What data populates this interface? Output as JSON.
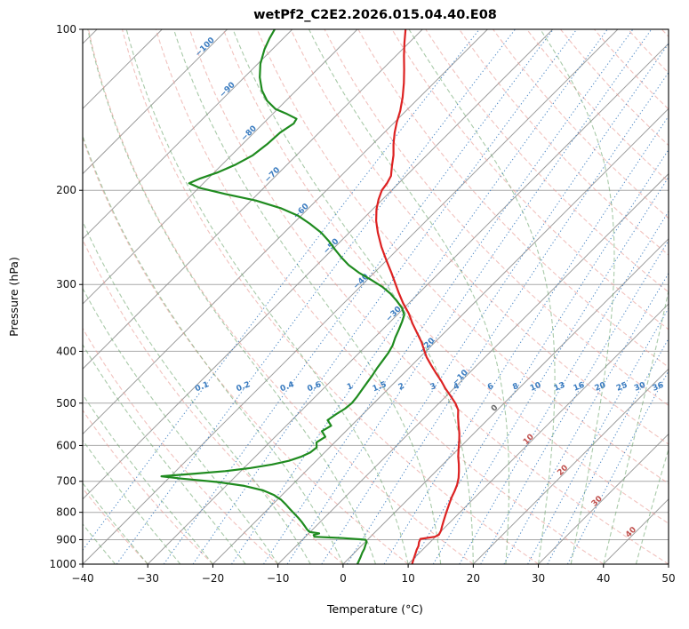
{
  "title": "wetPf2_C2E2.2026.015.04.40.E08",
  "x_axis": {
    "label": "Temperature (°C)",
    "min": -40,
    "max": 50,
    "ticks": [
      -40,
      -30,
      -20,
      -10,
      0,
      10,
      20,
      30,
      40,
      50
    ]
  },
  "y_axis": {
    "label": "Pressure (hPa)",
    "min": 100,
    "max": 1000,
    "scale": "log",
    "ticks": [
      100,
      200,
      300,
      400,
      500,
      600,
      700,
      800,
      900,
      1000
    ]
  },
  "chart_data": {
    "type": "line",
    "variant": "skew-t-log-p",
    "title": "wetPf2_C2E2.2026.015.04.40.E08",
    "xlabel": "Temperature (°C)",
    "ylabel": "Pressure (hPa)",
    "skew_degC_per_decade": 82.2,
    "pressure_gridlines": [
      100,
      200,
      300,
      400,
      500,
      600,
      700,
      800,
      900,
      1000
    ],
    "series": [
      {
        "name": "temperature",
        "color": "#dd2222",
        "points": [
          [
            1000,
            10.6
          ],
          [
            980,
            10.1
          ],
          [
            960,
            9.6
          ],
          [
            940,
            9.1
          ],
          [
            925,
            8.8
          ],
          [
            910,
            8.3
          ],
          [
            897,
            8.0
          ],
          [
            889,
            9.9
          ],
          [
            881,
            10.2
          ],
          [
            866,
            9.9
          ],
          [
            850,
            9.4
          ],
          [
            830,
            8.8
          ],
          [
            810,
            8.2
          ],
          [
            790,
            7.6
          ],
          [
            770,
            7.0
          ],
          [
            750,
            6.4
          ],
          [
            730,
            5.9
          ],
          [
            710,
            5.3
          ],
          [
            690,
            4.5
          ],
          [
            670,
            3.5
          ],
          [
            650,
            2.4
          ],
          [
            630,
            1.2
          ],
          [
            610,
            0.1
          ],
          [
            590,
            -1.0
          ],
          [
            570,
            -2.2
          ],
          [
            550,
            -3.6
          ],
          [
            530,
            -5.0
          ],
          [
            515,
            -6.0
          ],
          [
            500,
            -7.5
          ],
          [
            485,
            -9.3
          ],
          [
            470,
            -11.2
          ],
          [
            455,
            -13.0
          ],
          [
            440,
            -15.0
          ],
          [
            425,
            -17.0
          ],
          [
            410,
            -19.0
          ],
          [
            400,
            -20.2
          ],
          [
            385,
            -22.0
          ],
          [
            370,
            -24.1
          ],
          [
            355,
            -26.3
          ],
          [
            340,
            -28.4
          ],
          [
            325,
            -30.9
          ],
          [
            310,
            -33.3
          ],
          [
            300,
            -34.9
          ],
          [
            285,
            -37.4
          ],
          [
            270,
            -40.1
          ],
          [
            255,
            -42.9
          ],
          [
            240,
            -45.6
          ],
          [
            228,
            -47.7
          ],
          [
            217,
            -49.4
          ],
          [
            208,
            -50.6
          ],
          [
            200,
            -51.5
          ],
          [
            194,
            -51.8
          ],
          [
            188,
            -52.3
          ],
          [
            180,
            -53.7
          ],
          [
            172,
            -55.1
          ],
          [
            164,
            -56.8
          ],
          [
            156,
            -58.4
          ],
          [
            149,
            -59.7
          ],
          [
            142,
            -60.9
          ],
          [
            134,
            -62.6
          ],
          [
            126,
            -64.6
          ],
          [
            119,
            -66.6
          ],
          [
            112,
            -68.8
          ],
          [
            106,
            -70.7
          ],
          [
            100,
            -72.6
          ]
        ]
      },
      {
        "name": "dewpoint",
        "color": "#1f8b1f",
        "points": [
          [
            1000,
            2.2
          ],
          [
            985,
            1.9
          ],
          [
            970,
            1.6
          ],
          [
            952,
            1.2
          ],
          [
            936,
            0.9
          ],
          [
            921,
            0.5
          ],
          [
            909,
            0.2
          ],
          [
            900,
            -0.3
          ],
          [
            894,
            -4.0
          ],
          [
            889,
            -8.6
          ],
          [
            882,
            -9.0
          ],
          [
            876,
            -8.4
          ],
          [
            871,
            -10.0
          ],
          [
            862,
            -10.8
          ],
          [
            848,
            -11.8
          ],
          [
            833,
            -12.9
          ],
          [
            818,
            -14.1
          ],
          [
            803,
            -15.4
          ],
          [
            788,
            -16.7
          ],
          [
            773,
            -18.0
          ],
          [
            758,
            -19.4
          ],
          [
            743,
            -21.2
          ],
          [
            728,
            -23.6
          ],
          [
            714,
            -27.2
          ],
          [
            702,
            -32.0
          ],
          [
            692,
            -38.0
          ],
          [
            685,
            -41.4
          ],
          [
            678,
            -37.0
          ],
          [
            670,
            -32.4
          ],
          [
            661,
            -29.0
          ],
          [
            651,
            -26.2
          ],
          [
            641,
            -24.2
          ],
          [
            630,
            -23.0
          ],
          [
            618,
            -22.2
          ],
          [
            605,
            -22.0
          ],
          [
            592,
            -22.8
          ],
          [
            578,
            -22.3
          ],
          [
            564,
            -23.7
          ],
          [
            551,
            -23.1
          ],
          [
            538,
            -24.5
          ],
          [
            524,
            -24.1
          ],
          [
            512,
            -23.6
          ],
          [
            500,
            -23.4
          ],
          [
            486,
            -23.6
          ],
          [
            472,
            -23.9
          ],
          [
            458,
            -24.2
          ],
          [
            444,
            -24.5
          ],
          [
            430,
            -24.9
          ],
          [
            416,
            -25.2
          ],
          [
            403,
            -25.5
          ],
          [
            390,
            -26.0
          ],
          [
            377,
            -26.8
          ],
          [
            364,
            -27.5
          ],
          [
            352,
            -28.2
          ],
          [
            342,
            -28.9
          ],
          [
            332,
            -30.3
          ],
          [
            322,
            -32.2
          ],
          [
            312,
            -34.3
          ],
          [
            303,
            -36.6
          ],
          [
            294,
            -39.4
          ],
          [
            285,
            -42.4
          ],
          [
            276,
            -45.1
          ],
          [
            267,
            -47.4
          ],
          [
            258,
            -49.6
          ],
          [
            249,
            -51.8
          ],
          [
            240,
            -54.3
          ],
          [
            231,
            -57.4
          ],
          [
            223,
            -60.5
          ],
          [
            216,
            -64.3
          ],
          [
            209,
            -69.3
          ],
          [
            203,
            -75.2
          ],
          [
            198,
            -79.8
          ],
          [
            194,
            -82.2
          ],
          [
            190,
            -81.2
          ],
          [
            185,
            -79.4
          ],
          [
            179,
            -77.9
          ],
          [
            172,
            -76.7
          ],
          [
            164,
            -76.2
          ],
          [
            156,
            -76.0
          ],
          [
            150,
            -75.3
          ],
          [
            147,
            -75.6
          ],
          [
            144,
            -77.8
          ],
          [
            141,
            -80.3
          ],
          [
            136,
            -82.9
          ],
          [
            130,
            -85.3
          ],
          [
            123,
            -87.6
          ],
          [
            116,
            -89.6
          ],
          [
            109,
            -91.2
          ],
          [
            104,
            -92.1
          ],
          [
            100,
            -92.7
          ]
        ]
      }
    ],
    "isotherms": {
      "color": "#8c8c8c",
      "min": -120,
      "max": 50,
      "step": 10,
      "labels": [
        {
          "value": -100,
          "p": 109,
          "color": "#3b7cc0"
        },
        {
          "value": -90,
          "p": 131,
          "color": "#3b7cc0"
        },
        {
          "value": -80,
          "p": 158,
          "color": "#3b7cc0"
        },
        {
          "value": -70,
          "p": 189,
          "color": "#3b7cc0"
        },
        {
          "value": -60,
          "p": 221,
          "color": "#3b7cc0"
        },
        {
          "value": -50,
          "p": 257,
          "color": "#3b7cc0"
        },
        {
          "value": -40,
          "p": 299,
          "color": "#3b7cc0"
        },
        {
          "value": -30,
          "p": 344,
          "color": "#3b7cc0"
        },
        {
          "value": -20,
          "p": 394,
          "color": "#3b7cc0"
        },
        {
          "value": -10,
          "p": 452,
          "color": "#3b7cc0"
        },
        {
          "value": 0,
          "p": 516,
          "color": "#666666"
        },
        {
          "value": 10,
          "p": 590,
          "color": "#c0504d"
        },
        {
          "value": 20,
          "p": 674,
          "color": "#c0504d"
        },
        {
          "value": 30,
          "p": 770,
          "color": "#c0504d"
        },
        {
          "value": 40,
          "p": 880,
          "color": "#c0504d"
        }
      ]
    },
    "dry_adiabats": {
      "color": "#e89a93",
      "theta_min": -40,
      "theta_max": 200,
      "step": 10
    },
    "moist_adiabats": {
      "color": "#6fa66f",
      "thetaw_min": -40,
      "thetaw_max": 55,
      "step": 5
    },
    "mixing_ratio": {
      "color": "#3b7cc0",
      "label_pressure": 470,
      "values": [
        "0.1",
        "0.2",
        "0.4",
        "0.6",
        "1",
        "1.5",
        "2",
        "3",
        "4",
        "6",
        "8",
        "10",
        "13",
        "16",
        "20",
        "25",
        "30",
        "36"
      ]
    }
  }
}
